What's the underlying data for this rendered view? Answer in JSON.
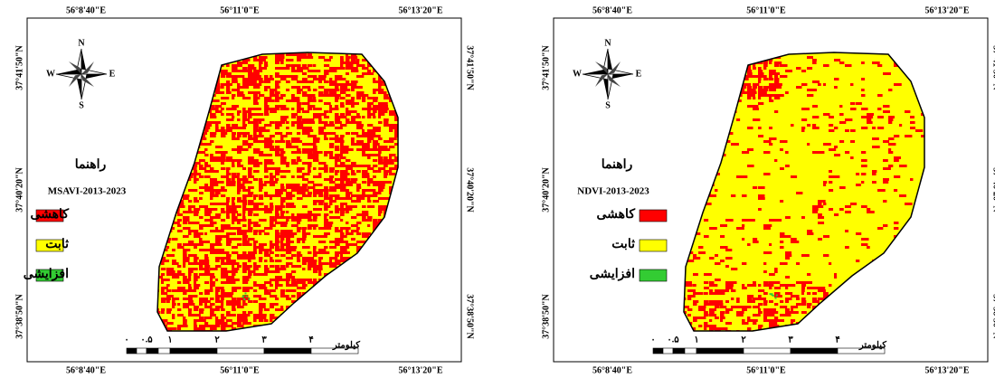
{
  "coordinates": {
    "longitude": [
      "56°8'40\"E",
      "56°11'0\"E",
      "56°13'20\"E"
    ],
    "latitude": [
      "37°41'50\"N",
      "37°40'20\"N",
      "37°38'50\"N"
    ]
  },
  "north_arrow": {
    "n": "N",
    "s": "S",
    "w": "W",
    "e": "E"
  },
  "legend": {
    "title": "راهنما",
    "items": [
      {
        "label": "کاهشی",
        "color": "#ff0000"
      },
      {
        "label": "ثابت",
        "color": "#ffff00"
      },
      {
        "label": "افزایشی",
        "color": "#33cc33"
      }
    ]
  },
  "scale_bar": {
    "ticks": [
      "٠",
      "٠.۵",
      "١",
      "٢",
      "٣",
      "۴"
    ],
    "unit": "کیلومتر"
  },
  "panels": [
    {
      "index": "MSAVI-2013-2023"
    },
    {
      "index": "NDVI-2013-2023"
    }
  ]
}
